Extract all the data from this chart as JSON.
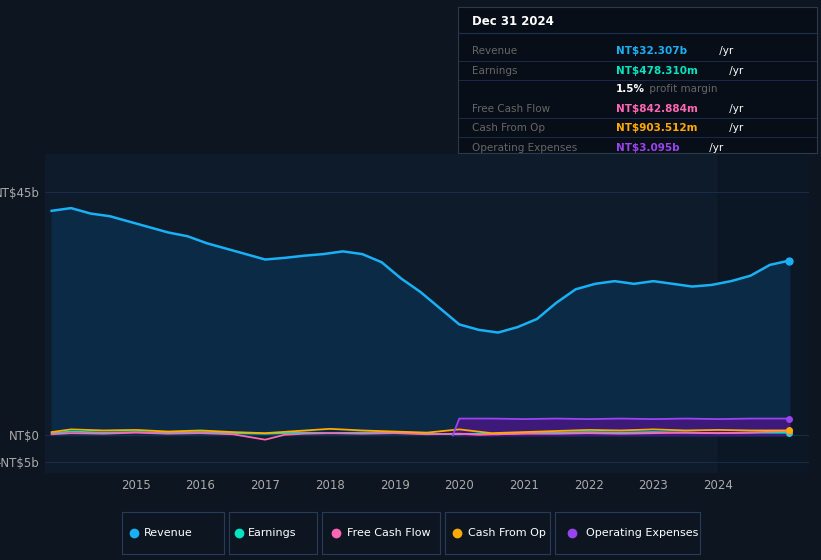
{
  "background_color": "#0d1521",
  "plot_bg_color": "#0d1b2a",
  "title": "Dec 31 2024",
  "yticks_labels": [
    "NT$45b",
    "NT$0",
    "-NT$5b"
  ],
  "yticks_values": [
    45,
    0,
    -5
  ],
  "ylim": [
    -7,
    52
  ],
  "xlim": [
    2013.6,
    2025.4
  ],
  "xtick_years": [
    2015,
    2016,
    2017,
    2018,
    2019,
    2020,
    2021,
    2022,
    2023,
    2024
  ],
  "revenue_color": "#1ab0f5",
  "earnings_color": "#00e5c0",
  "fcf_color": "#ff66b3",
  "cashfromop_color": "#ffaa00",
  "opex_color": "#9944ee",
  "fill_revenue_color": "#0a2a45",
  "fill_opex_color": "#3d1a7a",
  "grid_color": "#1e3050",
  "text_color": "#aaaaaa",
  "legend_items": [
    "Revenue",
    "Earnings",
    "Free Cash Flow",
    "Cash From Op",
    "Operating Expenses"
  ],
  "legend_colors": [
    "#1ab0f5",
    "#00e5c0",
    "#ff66b3",
    "#ffaa00",
    "#9944ee"
  ],
  "revenue_x": [
    2013.7,
    2014.0,
    2014.3,
    2014.6,
    2014.9,
    2015.2,
    2015.5,
    2015.8,
    2016.1,
    2016.4,
    2016.7,
    2017.0,
    2017.3,
    2017.6,
    2017.9,
    2018.2,
    2018.5,
    2018.8,
    2019.1,
    2019.4,
    2019.7,
    2020.0,
    2020.3,
    2020.6,
    2020.9,
    2021.2,
    2021.5,
    2021.8,
    2022.1,
    2022.4,
    2022.7,
    2023.0,
    2023.3,
    2023.6,
    2023.9,
    2024.2,
    2024.5,
    2024.8,
    2025.1
  ],
  "revenue_y": [
    41.5,
    42.0,
    41.0,
    40.5,
    39.5,
    38.5,
    37.5,
    36.8,
    35.5,
    34.5,
    33.5,
    32.5,
    32.8,
    33.2,
    33.5,
    34.0,
    33.5,
    32.0,
    29.0,
    26.5,
    23.5,
    20.5,
    19.5,
    19.0,
    20.0,
    21.5,
    24.5,
    27.0,
    28.0,
    28.5,
    28.0,
    28.5,
    28.0,
    27.5,
    27.8,
    28.5,
    29.5,
    31.5,
    32.3
  ],
  "earnings_x": [
    2013.7,
    2014.0,
    2014.5,
    2015.0,
    2015.5,
    2016.0,
    2016.5,
    2017.0,
    2017.3,
    2017.6,
    2018.0,
    2018.5,
    2019.0,
    2019.5,
    2020.0,
    2020.3,
    2020.6,
    2021.0,
    2021.5,
    2022.0,
    2022.5,
    2023.0,
    2023.5,
    2024.0,
    2024.5,
    2025.1
  ],
  "earnings_y": [
    0.4,
    0.7,
    0.5,
    0.6,
    0.5,
    0.6,
    0.4,
    0.3,
    0.4,
    0.5,
    0.4,
    0.5,
    0.6,
    0.3,
    0.2,
    0.3,
    0.2,
    0.4,
    0.5,
    0.6,
    0.5,
    0.6,
    0.5,
    0.4,
    0.5,
    0.48
  ],
  "fcf_x": [
    2013.7,
    2014.0,
    2014.5,
    2015.0,
    2015.5,
    2016.0,
    2016.5,
    2017.0,
    2017.3,
    2017.6,
    2018.0,
    2018.5,
    2019.0,
    2019.5,
    2020.0,
    2020.3,
    2020.6,
    2021.0,
    2021.5,
    2022.0,
    2022.5,
    2023.0,
    2023.5,
    2024.0,
    2024.5,
    2025.1
  ],
  "fcf_y": [
    0.2,
    0.4,
    0.3,
    0.5,
    0.3,
    0.4,
    0.2,
    -0.8,
    0.1,
    0.3,
    0.4,
    0.3,
    0.4,
    0.2,
    0.3,
    0.1,
    0.2,
    0.3,
    0.3,
    0.4,
    0.3,
    0.4,
    0.5,
    0.4,
    0.5,
    0.84
  ],
  "cop_x": [
    2013.7,
    2014.0,
    2014.5,
    2015.0,
    2015.5,
    2016.0,
    2016.5,
    2017.0,
    2017.5,
    2018.0,
    2018.5,
    2019.0,
    2019.5,
    2020.0,
    2020.5,
    2021.0,
    2021.5,
    2022.0,
    2022.5,
    2023.0,
    2023.5,
    2024.0,
    2024.5,
    2025.1
  ],
  "cop_y": [
    0.6,
    1.1,
    0.9,
    1.0,
    0.7,
    0.9,
    0.6,
    0.4,
    0.8,
    1.2,
    0.9,
    0.7,
    0.5,
    1.1,
    0.4,
    0.6,
    0.8,
    1.0,
    0.9,
    1.1,
    0.9,
    1.0,
    0.9,
    0.9
  ],
  "opex_x": [
    2019.9,
    2020.0,
    2020.5,
    2021.0,
    2021.5,
    2022.0,
    2022.5,
    2023.0,
    2023.5,
    2024.0,
    2024.5,
    2025.1
  ],
  "opex_y": [
    0.0,
    3.1,
    3.1,
    3.0,
    3.1,
    3.0,
    3.1,
    3.0,
    3.1,
    3.0,
    3.1,
    3.1
  ],
  "dark_region_x": 2024.0,
  "tooltip": {
    "title": "Dec 31 2024",
    "rows": [
      {
        "label": "Revenue",
        "value": "NT$32.307b /yr",
        "value_color": "#1ab0f5"
      },
      {
        "label": "Earnings",
        "value": "NT$478.310m /yr",
        "value_color": "#00e5c0"
      },
      {
        "label": "",
        "value": "1.5% profit margin",
        "value_color": "mixed"
      },
      {
        "label": "Free Cash Flow",
        "value": "NT$842.884m /yr",
        "value_color": "#ff66b3"
      },
      {
        "label": "Cash From Op",
        "value": "NT$903.512m /yr",
        "value_color": "#ffaa00"
      },
      {
        "label": "Operating Expenses",
        "value": "NT$3.095b /yr",
        "value_color": "#9944ee"
      }
    ]
  }
}
